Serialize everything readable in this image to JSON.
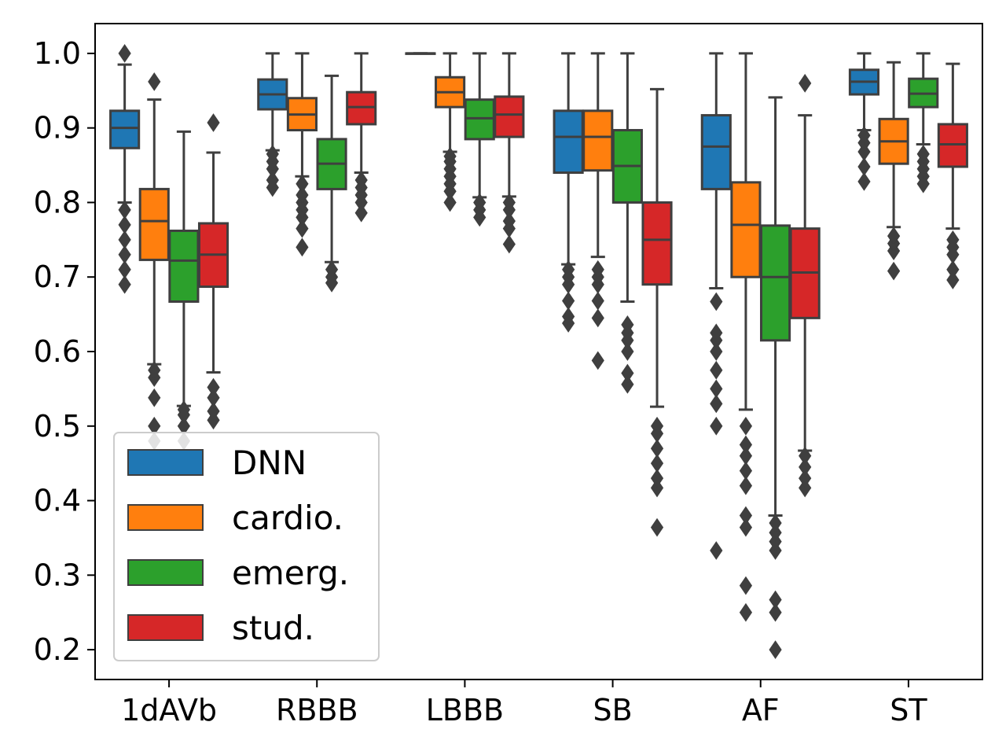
{
  "chart_data": {
    "type": "box",
    "title": "",
    "xlabel": "",
    "ylabel": "",
    "ylim": [
      0.16,
      1.04
    ],
    "yticks": [
      "0.2",
      "0.3",
      "0.4",
      "0.5",
      "0.6",
      "0.7",
      "0.8",
      "0.9",
      "1.0"
    ],
    "grid": false,
    "legend_position": "lower-left",
    "categories": [
      "1dAVb",
      "RBBB",
      "LBBB",
      "SB",
      "AF",
      "ST"
    ],
    "series": [
      {
        "name": "DNN",
        "color": "#1f77b4",
        "boxes": [
          {
            "wlo": 0.8,
            "q1": 0.873,
            "median": 0.9,
            "q3": 0.923,
            "whi": 0.985,
            "fliers": [
              0.69,
              0.71,
              0.73,
              0.75,
              0.77,
              0.79,
              1.0
            ]
          },
          {
            "wlo": 0.87,
            "q1": 0.925,
            "median": 0.945,
            "q3": 0.965,
            "whi": 1.0,
            "fliers": [
              0.82,
              0.83,
              0.845,
              0.855,
              0.865
            ]
          },
          {
            "wlo": 1.0,
            "q1": 1.0,
            "median": 1.0,
            "q3": 1.0,
            "whi": 1.0,
            "fliers": []
          },
          {
            "wlo": 0.717,
            "q1": 0.84,
            "median": 0.888,
            "q3": 0.923,
            "whi": 1.0,
            "fliers": [
              0.638,
              0.647,
              0.668,
              0.69,
              0.7,
              0.71
            ]
          },
          {
            "wlo": 0.685,
            "q1": 0.818,
            "median": 0.875,
            "q3": 0.917,
            "whi": 1.0,
            "fliers": [
              0.333,
              0.5,
              0.53,
              0.55,
              0.575,
              0.6,
              0.615,
              0.625,
              0.667
            ]
          },
          {
            "wlo": 0.897,
            "q1": 0.945,
            "median": 0.962,
            "q3": 0.978,
            "whi": 1.0,
            "fliers": [
              0.828,
              0.848,
              0.868,
              0.88,
              0.89
            ]
          }
        ]
      },
      {
        "name": "cardio.",
        "color": "#ff7f0e",
        "boxes": [
          {
            "wlo": 0.583,
            "q1": 0.723,
            "median": 0.775,
            "q3": 0.818,
            "whi": 0.938,
            "fliers": [
              0.48,
              0.5,
              0.538,
              0.565,
              0.575,
              0.962
            ]
          },
          {
            "wlo": 0.835,
            "q1": 0.897,
            "median": 0.918,
            "q3": 0.94,
            "whi": 1.0,
            "fliers": [
              0.74,
              0.765,
              0.78,
              0.79,
              0.8,
              0.81,
              0.825
            ]
          },
          {
            "wlo": 0.868,
            "q1": 0.928,
            "median": 0.948,
            "q3": 0.968,
            "whi": 1.0,
            "fliers": [
              0.8,
              0.815,
              0.825,
              0.835,
              0.845,
              0.855,
              0.862
            ]
          },
          {
            "wlo": 0.727,
            "q1": 0.843,
            "median": 0.888,
            "q3": 0.923,
            "whi": 1.0,
            "fliers": [
              0.588,
              0.645,
              0.668,
              0.69,
              0.7,
              0.71
            ]
          },
          {
            "wlo": 0.522,
            "q1": 0.7,
            "median": 0.77,
            "q3": 0.827,
            "whi": 1.0,
            "fliers": [
              0.25,
              0.286,
              0.364,
              0.38,
              0.42,
              0.44,
              0.46,
              0.475,
              0.5
            ]
          },
          {
            "wlo": 0.767,
            "q1": 0.852,
            "median": 0.882,
            "q3": 0.912,
            "whi": 0.988,
            "fliers": [
              0.708,
              0.735,
              0.745,
              0.755
            ]
          }
        ]
      },
      {
        "name": "emerg.",
        "color": "#2ca02c",
        "boxes": [
          {
            "wlo": 0.527,
            "q1": 0.667,
            "median": 0.722,
            "q3": 0.762,
            "whi": 0.895,
            "fliers": [
              0.48,
              0.5,
              0.515,
              0.522
            ]
          },
          {
            "wlo": 0.72,
            "q1": 0.818,
            "median": 0.852,
            "q3": 0.885,
            "whi": 0.97,
            "fliers": [
              0.692,
              0.7,
              0.71
            ]
          },
          {
            "wlo": 0.807,
            "q1": 0.885,
            "median": 0.913,
            "q3": 0.938,
            "whi": 1.0,
            "fliers": [
              0.78,
              0.79,
              0.8
            ]
          },
          {
            "wlo": 0.667,
            "q1": 0.8,
            "median": 0.849,
            "q3": 0.897,
            "whi": 1.0,
            "fliers": [
              0.556,
              0.571,
              0.6,
              0.615,
              0.625,
              0.636
            ]
          },
          {
            "wlo": 0.38,
            "q1": 0.615,
            "median": 0.7,
            "q3": 0.769,
            "whi": 0.941,
            "fliers": [
              0.2,
              0.25,
              0.267,
              0.333,
              0.345,
              0.357,
              0.37
            ]
          },
          {
            "wlo": 0.878,
            "q1": 0.928,
            "median": 0.946,
            "q3": 0.966,
            "whi": 1.0,
            "fliers": [
              0.825,
              0.835,
              0.845,
              0.855,
              0.865
            ]
          }
        ]
      },
      {
        "name": "stud.",
        "color": "#d62728",
        "boxes": [
          {
            "wlo": 0.572,
            "q1": 0.687,
            "median": 0.73,
            "q3": 0.772,
            "whi": 0.867,
            "fliers": [
              0.508,
              0.52,
              0.538,
              0.552,
              0.907
            ]
          },
          {
            "wlo": 0.84,
            "q1": 0.905,
            "median": 0.928,
            "q3": 0.948,
            "whi": 1.0,
            "fliers": [
              0.786,
              0.8,
              0.81,
              0.82,
              0.83
            ]
          },
          {
            "wlo": 0.808,
            "q1": 0.888,
            "median": 0.918,
            "q3": 0.942,
            "whi": 1.0,
            "fliers": [
              0.744,
              0.765,
              0.775,
              0.79,
              0.8
            ]
          },
          {
            "wlo": 0.526,
            "q1": 0.69,
            "median": 0.75,
            "q3": 0.8,
            "whi": 0.952,
            "fliers": [
              0.364,
              0.417,
              0.43,
              0.45,
              0.47,
              0.49,
              0.5
            ]
          },
          {
            "wlo": 0.467,
            "q1": 0.645,
            "median": 0.706,
            "q3": 0.765,
            "whi": 0.917,
            "fliers": [
              0.417,
              0.43,
              0.445,
              0.46,
              0.96
            ]
          },
          {
            "wlo": 0.765,
            "q1": 0.848,
            "median": 0.878,
            "q3": 0.905,
            "whi": 0.986,
            "fliers": [
              0.696,
              0.71,
              0.73,
              0.74,
              0.75
            ]
          }
        ]
      }
    ]
  }
}
